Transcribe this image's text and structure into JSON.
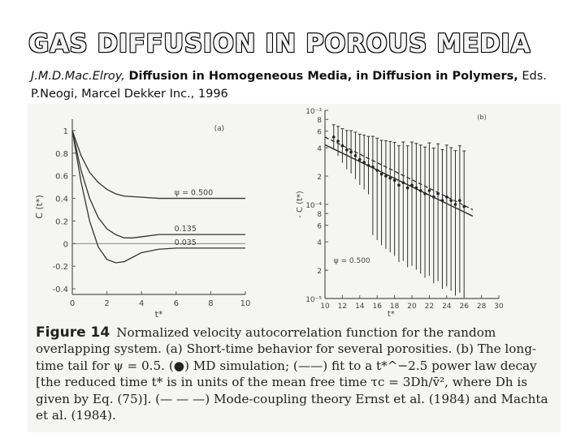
{
  "slide": {
    "title": "GAS DIFFUSION IN POROUS MEDIA",
    "citation": {
      "authors": "J.M.D.Mac.Elroy,",
      "chapter": "Diffusion in Homogeneous Media",
      "in_word": ", in",
      "book": "Diffusion in Polymers,",
      "rest": "Eds. P.Neogi, Marcel Dekker Inc., 1996"
    }
  },
  "figure": {
    "label": "Figure 14",
    "caption": "Normalized velocity autocorrelation function for the random overlapping system. (a) Short-time behavior for several porosities. (b) The long-time tail for ψ = 0.5. (●) MD simulation; (——) fit to a t*^−2.5 power law decay [the reduced time t* is in units of the mean free time τc = 3Dh/v̄², where Dh is given by Eq. (75)]. (— — —) Mode-coupling theory Ernst et al. (1984) and Machta et al. (1984)."
  },
  "chart_data": [
    {
      "type": "line",
      "panel_label": "(a)",
      "ylabel": "C (t*)",
      "xlabel": "t*",
      "xlim": [
        0,
        10
      ],
      "ylim": [
        -0.45,
        1.1
      ],
      "x_ticks": [
        "0",
        "2",
        "4",
        "6",
        "8",
        "10"
      ],
      "y_ticks": [
        "1",
        "0.8",
        "0.6",
        "0.4",
        "0.2",
        "0",
        "-0.2",
        "-0.4"
      ],
      "series": [
        {
          "name": "ψ = 0.500",
          "x": [
            0,
            0.5,
            1,
            1.5,
            2,
            2.5,
            3,
            4,
            5,
            6,
            8,
            10
          ],
          "y": [
            1.0,
            0.78,
            0.63,
            0.54,
            0.48,
            0.44,
            0.42,
            0.41,
            0.4,
            0.4,
            0.4,
            0.4
          ]
        },
        {
          "name": "0.135",
          "x": [
            0,
            0.5,
            1,
            1.5,
            2,
            2.5,
            3,
            3.5,
            4,
            5,
            6,
            8,
            10
          ],
          "y": [
            1.0,
            0.65,
            0.4,
            0.23,
            0.13,
            0.08,
            0.05,
            0.05,
            0.06,
            0.08,
            0.08,
            0.08,
            0.08
          ]
        },
        {
          "name": "0.035",
          "x": [
            0,
            0.5,
            1,
            1.5,
            2,
            2.5,
            3,
            3.5,
            4,
            5,
            6,
            8,
            10
          ],
          "y": [
            1.0,
            0.55,
            0.2,
            -0.03,
            -0.14,
            -0.17,
            -0.16,
            -0.12,
            -0.08,
            -0.05,
            -0.04,
            -0.04,
            -0.04
          ]
        }
      ]
    },
    {
      "type": "scatter",
      "panel_label": "(b)",
      "ylabel": "- C (t*)",
      "xlabel": "t*",
      "log_y": true,
      "xlim": [
        10,
        30
      ],
      "ylim": [
        1e-05,
        0.001
      ],
      "x_ticks": [
        "10",
        "12",
        "14",
        "16",
        "18",
        "20",
        "22",
        "24",
        "26",
        "28",
        "30"
      ],
      "y_ticks": [
        "10⁻³",
        "8",
        "6",
        "4",
        "2",
        "10⁻⁴",
        "8",
        "6",
        "4",
        "2",
        "10⁻⁵"
      ],
      "annotation": "ψ = 0.500",
      "series": [
        {
          "name": "MD simulation",
          "x": [
            11,
            11.5,
            12,
            12.5,
            13,
            13.5,
            14,
            14.5,
            15,
            15.5,
            16,
            16.5,
            17,
            17.5,
            18,
            18.5,
            19,
            19.5,
            20,
            20.5,
            21,
            21.5,
            22,
            22.5,
            23,
            23.5,
            24,
            24.5,
            25,
            25.5,
            26
          ],
          "y": [
            0.00052,
            0.00047,
            0.00042,
            0.00038,
            0.00036,
            0.00033,
            0.0003,
            0.00028,
            0.00026,
            0.00025,
            0.00023,
            0.00021,
            0.0002,
            0.00019,
            0.00018,
            0.00016,
            0.00017,
            0.00015,
            0.00016,
            0.00015,
            0.00014,
            0.00013,
            0.00014,
            0.00012,
            0.00013,
            0.00011,
            0.00012,
            0.00011,
            0.0001,
            0.00011,
            9.5e-05
          ]
        },
        {
          "name": "fit t*^-2.5",
          "x": [
            10,
            27
          ],
          "y": [
            0.00043,
            7.5e-05
          ]
        },
        {
          "name": "Mode-coupling theory",
          "x": [
            10,
            27
          ],
          "y": [
            0.00052,
            8.8e-05
          ]
        }
      ]
    }
  ]
}
